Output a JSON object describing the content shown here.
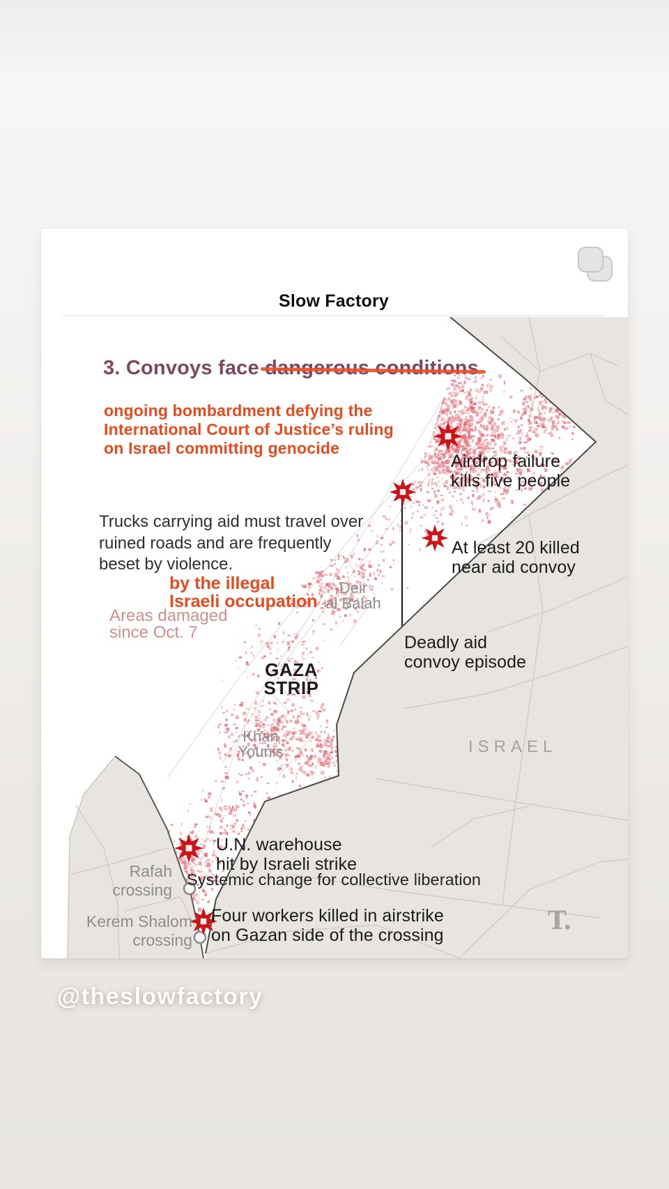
{
  "page": {
    "handle": "@theslowfactory"
  },
  "card": {
    "title": "Slow Factory",
    "carousel_icon": "stacked-cards-icon"
  },
  "infographic": {
    "heading": {
      "prefix": "3. Convoys face ",
      "struck": "dangerous conditions"
    },
    "annotation_top": {
      "line1": "ongoing bombardment defying the",
      "line2": "International Court of Justice’s ruling",
      "line3": "on Israel committing genocide"
    },
    "body_text": {
      "line1": "Trucks carrying aid must travel over",
      "line2": "ruined roads and are frequently",
      "line3": "beset by violence."
    },
    "annotation_mid": {
      "line1": "by the illegal",
      "line2": "Israeli occupation"
    },
    "legend": {
      "line1": "Areas damaged",
      "line2": "since Oct. 7"
    },
    "annotation_bottom": "Systemic change for collective liberation",
    "source": "T.",
    "map": {
      "regions": {
        "gaza_line1": "GAZA",
        "gaza_line2": "STRIP",
        "israel": "ISRAEL",
        "deir_line1": "Deir",
        "deir_line2": "al Balah",
        "khan_line1": "Khan",
        "khan_line2": "Younis"
      },
      "crossings": {
        "rafah_line1": "Rafah",
        "rafah_line2": "crossing",
        "kerem_line1": "Kerem Shalom",
        "kerem_line2": "crossing"
      },
      "events": {
        "airdrop_line1": "Airdrop failure",
        "airdrop_line2": "kills five people",
        "convoy20_line1": "At least 20 killed",
        "convoy20_line2": "near aid convoy",
        "deadly_line1": "Deadly aid",
        "deadly_line2": "convoy episode",
        "warehouse_line1": "U.N. warehouse",
        "warehouse_line2": "hit by Israeli strike",
        "workers_line1": "Four workers killed in airstrike",
        "workers_line2": "on Gazan side of the crossing"
      }
    },
    "colors": {
      "accent_orange": "#e84a1d",
      "heading_plum": "#7d4760",
      "damage_red": "#e4737e",
      "marker_red": "#c91418",
      "land_gray": "#e8e5e1",
      "map_label_gray": "#8d8d8d"
    }
  }
}
